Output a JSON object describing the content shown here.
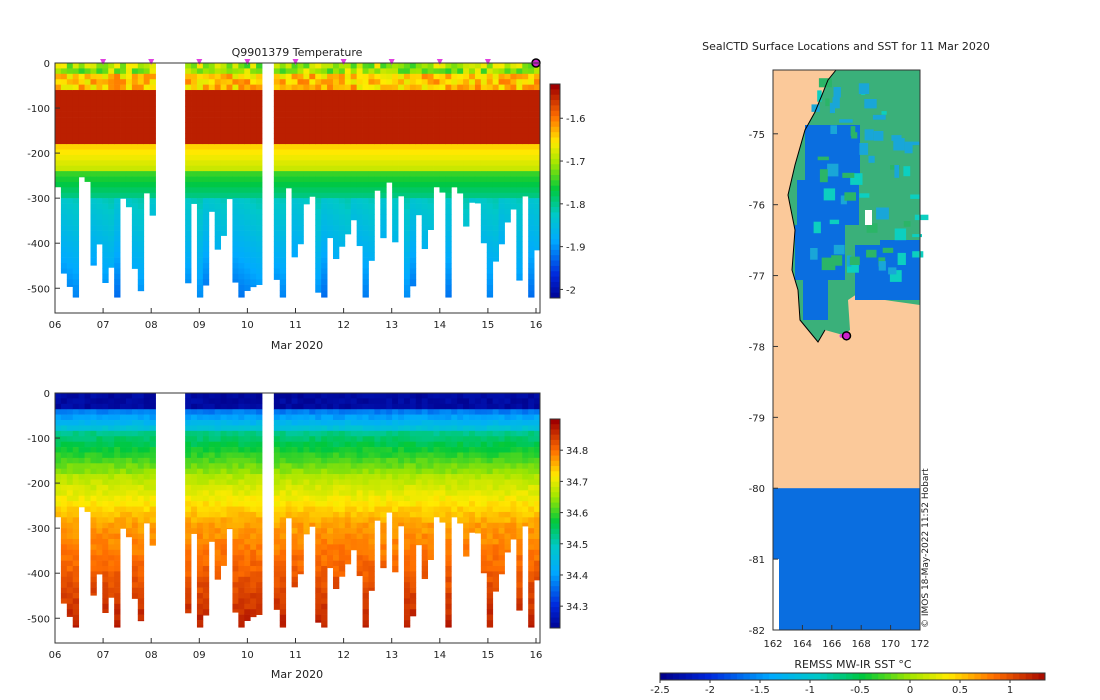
{
  "chart_data": [
    {
      "type": "heatmap",
      "id": "temperature",
      "title": "Q9901379  Temperature",
      "xlabel": "Mar 2020",
      "ylabel": "",
      "x_ticks": [
        "06",
        "07",
        "08",
        "09",
        "10",
        "11",
        "12",
        "13",
        "14",
        "15",
        "16"
      ],
      "y_ticks": [
        "0",
        "-100",
        "-200",
        "-300",
        "-400",
        "-500"
      ],
      "xlim": [
        6,
        16.1
      ],
      "ylim": [
        -555,
        5
      ],
      "colorbar": {
        "ticks": [
          "-1.6",
          "-1.7",
          "-1.8",
          "-1.9",
          "-2"
        ],
        "min": -2.02,
        "max": -1.52
      },
      "surfacing_markers_day": [
        7,
        8,
        9,
        10,
        11,
        12,
        13,
        14,
        15
      ],
      "current_position_day": 16
    },
    {
      "type": "heatmap",
      "id": "salinity",
      "title": "",
      "xlabel": "Mar 2020",
      "ylabel": "",
      "x_ticks": [
        "06",
        "07",
        "08",
        "09",
        "10",
        "11",
        "12",
        "13",
        "14",
        "15",
        "16"
      ],
      "y_ticks": [
        "0",
        "-100",
        "-200",
        "-300",
        "-400",
        "-500"
      ],
      "xlim": [
        6,
        16.1
      ],
      "ylim": [
        -555,
        5
      ],
      "colorbar": {
        "ticks": [
          "34.8",
          "34.7",
          "34.6",
          "34.5",
          "34.4",
          "34.3"
        ],
        "min": 34.23,
        "max": 34.9
      }
    },
    {
      "type": "heatmap",
      "id": "sst_map",
      "title": "SealCTD Surface Locations and SST for 11 Mar 2020",
      "xlabel": "",
      "ylabel": "",
      "x_ticks": [
        "162",
        "164",
        "166",
        "168",
        "170",
        "172"
      ],
      "y_ticks": [
        "-75",
        "-76",
        "-77",
        "-78",
        "-79",
        "-80",
        "-81",
        "-82"
      ],
      "xlim": [
        162,
        172
      ],
      "ylim": [
        -82,
        -74.1
      ],
      "colorbar": {
        "label": "REMSS MW-IR SST °C",
        "ticks": [
          "-2.5",
          "-2",
          "-1.5",
          "-1",
          "-0.5",
          "0",
          "0.5",
          "1"
        ],
        "min": -2.5,
        "max": 1.35
      },
      "seal_position": {
        "lon": 167.0,
        "lat": -77.85
      },
      "credit": "© IMOS 18-May-2022 11:52 Hobart"
    }
  ]
}
